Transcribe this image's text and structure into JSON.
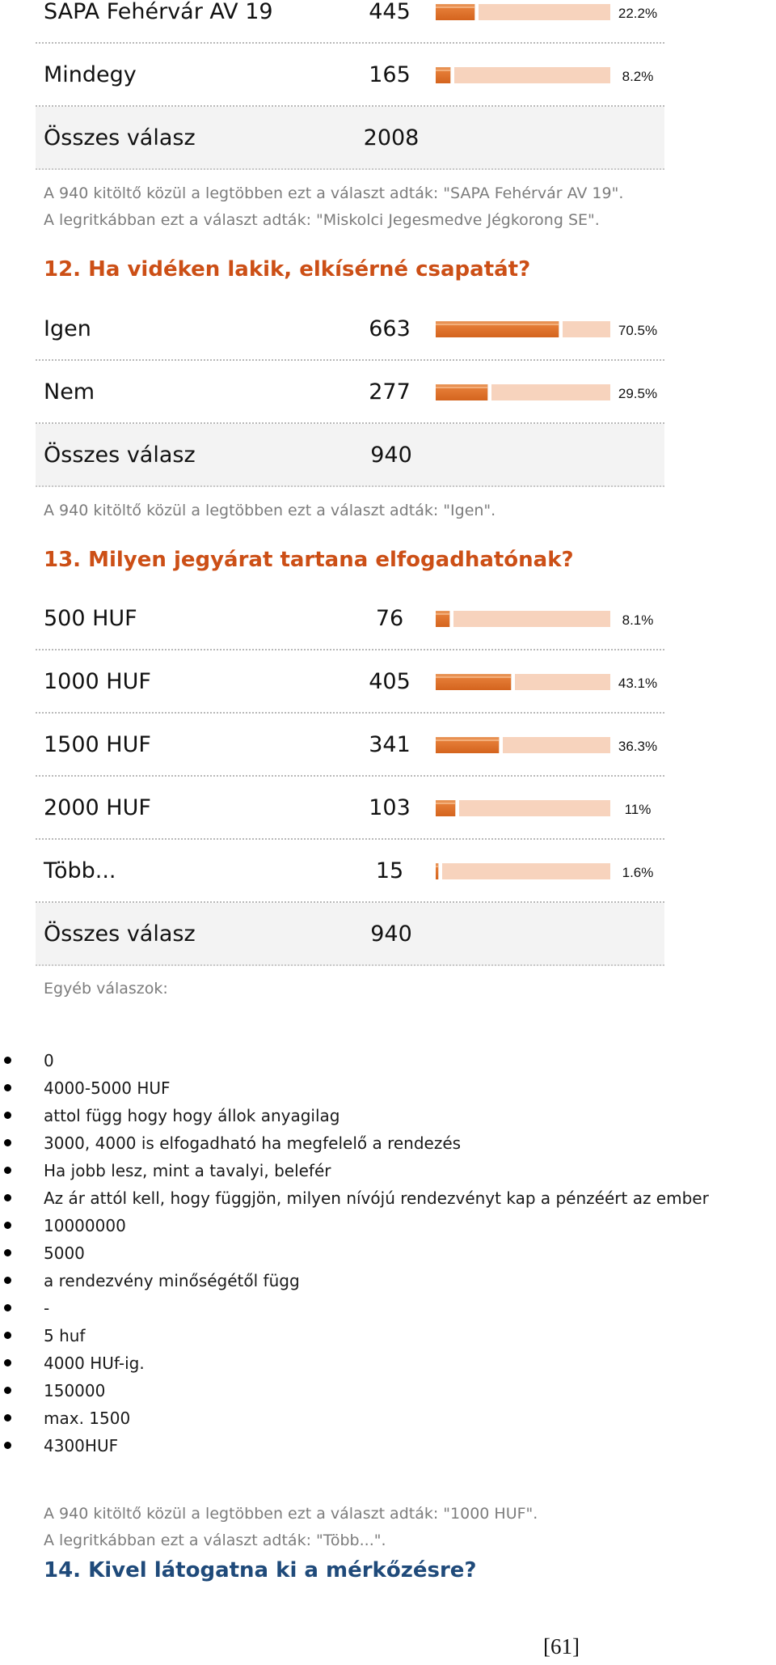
{
  "q11": {
    "rows": [
      {
        "label": "SAPA Fehérvár AV 19",
        "count": "445",
        "pct_label": "22.2%",
        "pct": 22.2,
        "top": -10
      },
      {
        "label": "Mindegy",
        "count": "165",
        "pct_label": "8.2%",
        "pct": 8.2,
        "top": 68
      }
    ],
    "total_label": "Összes válasz",
    "total_count": "2008",
    "note1": "A 940 kitöltő közül a legtöbben ezt a választ adták: \"SAPA Fehérvár AV 19\".",
    "note2": "A legritkábban ezt a választ adták: \"Miskolci Jegesmedve Jégkorong SE\"."
  },
  "q12": {
    "title": "12. Ha vidéken lakik, elkísérné csapatát?",
    "rows": [
      {
        "label": "Igen",
        "count": "663",
        "pct_label": "70.5%",
        "pct": 70.5
      },
      {
        "label": "Nem",
        "count": "277",
        "pct_label": "29.5%",
        "pct": 29.5
      }
    ],
    "total_label": "Összes válasz",
    "total_count": "940",
    "note1": "A 940 kitöltő közül a legtöbben ezt a választ adták: \"Igen\"."
  },
  "q13": {
    "title": "13. Milyen jegyárat tartana elfogadhatónak?",
    "rows": [
      {
        "label": "500 HUF",
        "count": "76",
        "pct_label": "8.1%",
        "pct": 8.1
      },
      {
        "label": "1000 HUF",
        "count": "405",
        "pct_label": "43.1%",
        "pct": 43.1
      },
      {
        "label": "1500 HUF",
        "count": "341",
        "pct_label": "36.3%",
        "pct": 36.3
      },
      {
        "label": "2000 HUF",
        "count": "103",
        "pct_label": "11%",
        "pct": 11
      },
      {
        "label": "Több...",
        "count": "15",
        "pct_label": "1.6%",
        "pct": 1.6
      }
    ],
    "total_label": "Összes válasz",
    "total_count": "940",
    "other_label": "Egyéb válaszok:",
    "other_answers": [
      "0",
      "4000-5000 HUF",
      "attol függ hogy hogy állok anyagilag",
      "3000, 4000 is elfogadható ha megfelelő a rendezés",
      "Ha jobb lesz, mint a tavalyi, belefér",
      "Az ár attól kell, hogy függjön, milyen nívójú rendezvényt kap a pénzéért az ember",
      "10000000",
      "5000",
      "a rendezvény minőségétől függ",
      "-",
      "5 huf",
      "4000 HUf-ig.",
      "150000",
      "max. 1500",
      "4300HUF"
    ],
    "note1": "A 940 kitöltő közül a legtöbben ezt a választ adták: \"1000 HUF\".",
    "note2": "A legritkábban ezt a választ adták: \"Több...\"."
  },
  "q14": {
    "title": "14. Kivel látogatna ki a mérkőzésre?"
  },
  "page_number": "[61]",
  "colors": {
    "bar_fill": "#e0702b",
    "bar_rest": "#f7d3bd",
    "question_title": "#cc4f16",
    "question_title_q14": "#1f4a7a",
    "note_text": "#7c7c7c"
  }
}
